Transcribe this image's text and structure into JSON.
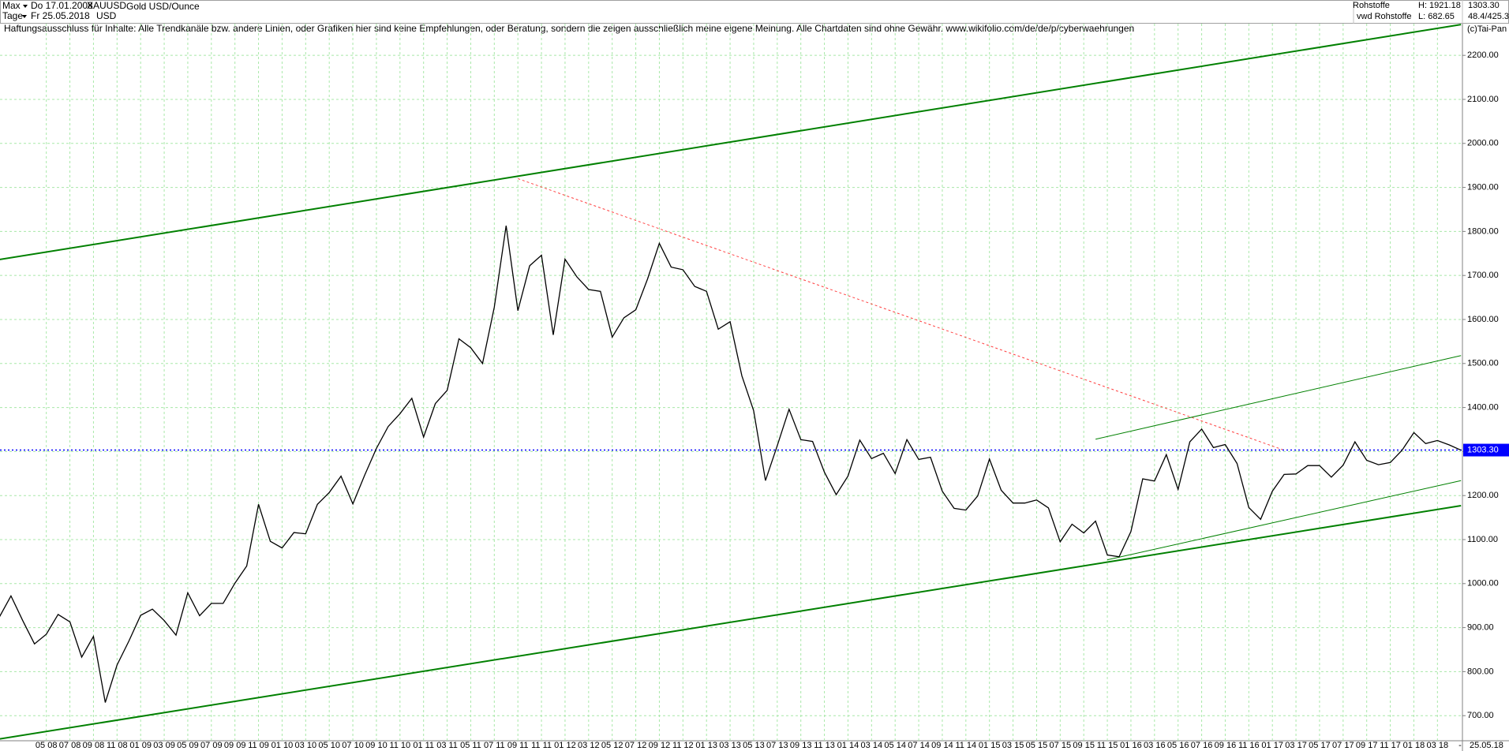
{
  "chart_data": {
    "type": "line",
    "header": {
      "range": "Max",
      "start": "Do 17.01.2008",
      "symbol": "XAUUSD",
      "instrument": "Gold USD/Ounce",
      "period": "Tage",
      "end": "Fr 25.05.2018",
      "currency": "USD",
      "market": "Rohstoffe",
      "source": "vwd Rohstoffe",
      "high": "H: 1921.18",
      "low": "L: 682.65",
      "last": "1303.30",
      "ratio": "48.4/425.3"
    },
    "disclaimer": "Haftungsausschluss für Inhalte: Alle Trendkanäle bzw. andere Linien, oder Grafiken hier sind keine Empfehlungen, oder Beratung, sondern die zeigen ausschließlich meine eigene Meinung. Alle Chartdaten sind ohne Gewähr.  www.wikifolio.com/de/de/p/cyberwaehrungen",
    "copyright": "(c)Tai-Pan",
    "categories": [
      null,
      null,
      null,
      null,
      "05 08",
      null,
      "07 08",
      null,
      "09 08",
      null,
      "11 08",
      null,
      "01 09",
      null,
      "03 09",
      null,
      "05 09",
      null,
      "07 09",
      null,
      "09 09",
      null,
      "11 09",
      null,
      "01 10",
      null,
      "03 10",
      null,
      "05 10",
      null,
      "07 10",
      null,
      "09 10",
      null,
      "11 10",
      null,
      "01 11",
      null,
      "03 11",
      null,
      "05 11",
      null,
      "07 11",
      null,
      "09 11",
      null,
      "11 11",
      null,
      "01 12",
      null,
      "03 12",
      null,
      "05 12",
      null,
      "07 12",
      null,
      "09 12",
      null,
      "11 12",
      null,
      "01 13",
      null,
      "03 13",
      null,
      "05 13",
      null,
      "07 13",
      null,
      "09 13",
      null,
      "11 13",
      null,
      "01 14",
      null,
      "03 14",
      null,
      "05 14",
      null,
      "07 14",
      null,
      "09 14",
      null,
      "11 14",
      null,
      "01 15",
      null,
      "03 15",
      null,
      "05 15",
      null,
      "07 15",
      null,
      "09 15",
      null,
      "11 15",
      null,
      "01 16",
      null,
      "03 16",
      null,
      "05 16",
      null,
      "07 16",
      null,
      "09 16",
      null,
      "11 16",
      null,
      "01 17",
      null,
      "03 17",
      null,
      "05 17",
      null,
      "07 17",
      null,
      "09 17",
      null,
      "11 17",
      null,
      "01 18",
      null,
      "03 18",
      null,
      null
    ],
    "values": [
      923,
      972,
      916,
      863,
      885,
      930,
      913,
      833,
      880,
      730,
      815,
      869,
      928,
      942,
      916,
      883,
      979,
      927,
      955,
      955,
      1001,
      1040,
      1180,
      1096,
      1081,
      1116,
      1113,
      1180,
      1207,
      1244,
      1181,
      1246,
      1307,
      1357,
      1386,
      1421,
      1333,
      1409,
      1439,
      1556,
      1536,
      1500,
      1628,
      1813,
      1620,
      1722,
      1746,
      1565,
      1737,
      1697,
      1668,
      1664,
      1560,
      1604,
      1622,
      1692,
      1773,
      1719,
      1713,
      1675,
      1664,
      1578,
      1595,
      1472,
      1393,
      1234,
      1313,
      1396,
      1327,
      1323,
      1253,
      1202,
      1244,
      1326,
      1284,
      1296,
      1250,
      1327,
      1282,
      1287,
      1210,
      1171,
      1167,
      1199,
      1283,
      1212,
      1183,
      1183,
      1190,
      1172,
      1095,
      1135,
      1115,
      1142,
      1065,
      1061,
      1118,
      1238,
      1233,
      1293,
      1214,
      1322,
      1351,
      1309,
      1316,
      1273,
      1173,
      1146,
      1210,
      1248,
      1249,
      1268,
      1268,
      1242,
      1269,
      1322,
      1280,
      1270,
      1275,
      1303,
      1343,
      1318,
      1325,
      1315,
      1303
    ],
    "color": "#000000",
    "x_end_marker": "-",
    "x_end_label": "25.05.18",
    "ylim": [
      643,
      2272
    ],
    "yticks": [
      {
        "value": 700,
        "label": "700.00"
      },
      {
        "value": 800,
        "label": "800.00"
      },
      {
        "value": 900,
        "label": "900.00"
      },
      {
        "value": 1000,
        "label": "1000.00"
      },
      {
        "value": 1100,
        "label": "1100.00"
      },
      {
        "value": 1200,
        "label": "1200.00"
      },
      {
        "value": 1300,
        "label": "1300.00"
      },
      {
        "value": 1400,
        "label": "1400.00"
      },
      {
        "value": 1500,
        "label": "1500.00"
      },
      {
        "value": 1600,
        "label": "1600.00"
      },
      {
        "value": 1700,
        "label": "1700.00"
      },
      {
        "value": 1800,
        "label": "1800.00"
      },
      {
        "value": 1900,
        "label": "1900.00"
      },
      {
        "value": 2000,
        "label": "2000.00"
      },
      {
        "value": 2100,
        "label": "2100.00"
      },
      {
        "value": 2200,
        "label": "2200.00"
      }
    ],
    "grid": true,
    "last_price": {
      "value": 1303.3,
      "label": "1303.30",
      "color": "#0000ff"
    },
    "trend_lines": [
      {
        "color": "#008000",
        "width": 2,
        "dashed": false,
        "x": [
          "01 08",
          "05 18"
        ],
        "y": [
          1736,
          2270
        ]
      },
      {
        "color": "#008000",
        "width": 2,
        "dashed": false,
        "x": [
          "01 08",
          "05 18"
        ],
        "y": [
          647,
          1177
        ]
      },
      {
        "color": "#ff4040",
        "width": 1,
        "dashed": true,
        "x": [
          "09 11",
          "02 17"
        ],
        "y": [
          1920,
          1303
        ]
      },
      {
        "color": "#008000",
        "width": 1,
        "dashed": false,
        "x": [
          "10 15",
          "05 18"
        ],
        "y": [
          1328,
          1518
        ]
      },
      {
        "color": "#008000",
        "width": 1,
        "dashed": false,
        "x": [
          "11 15",
          "05 18"
        ],
        "y": [
          1054,
          1234
        ]
      }
    ]
  }
}
